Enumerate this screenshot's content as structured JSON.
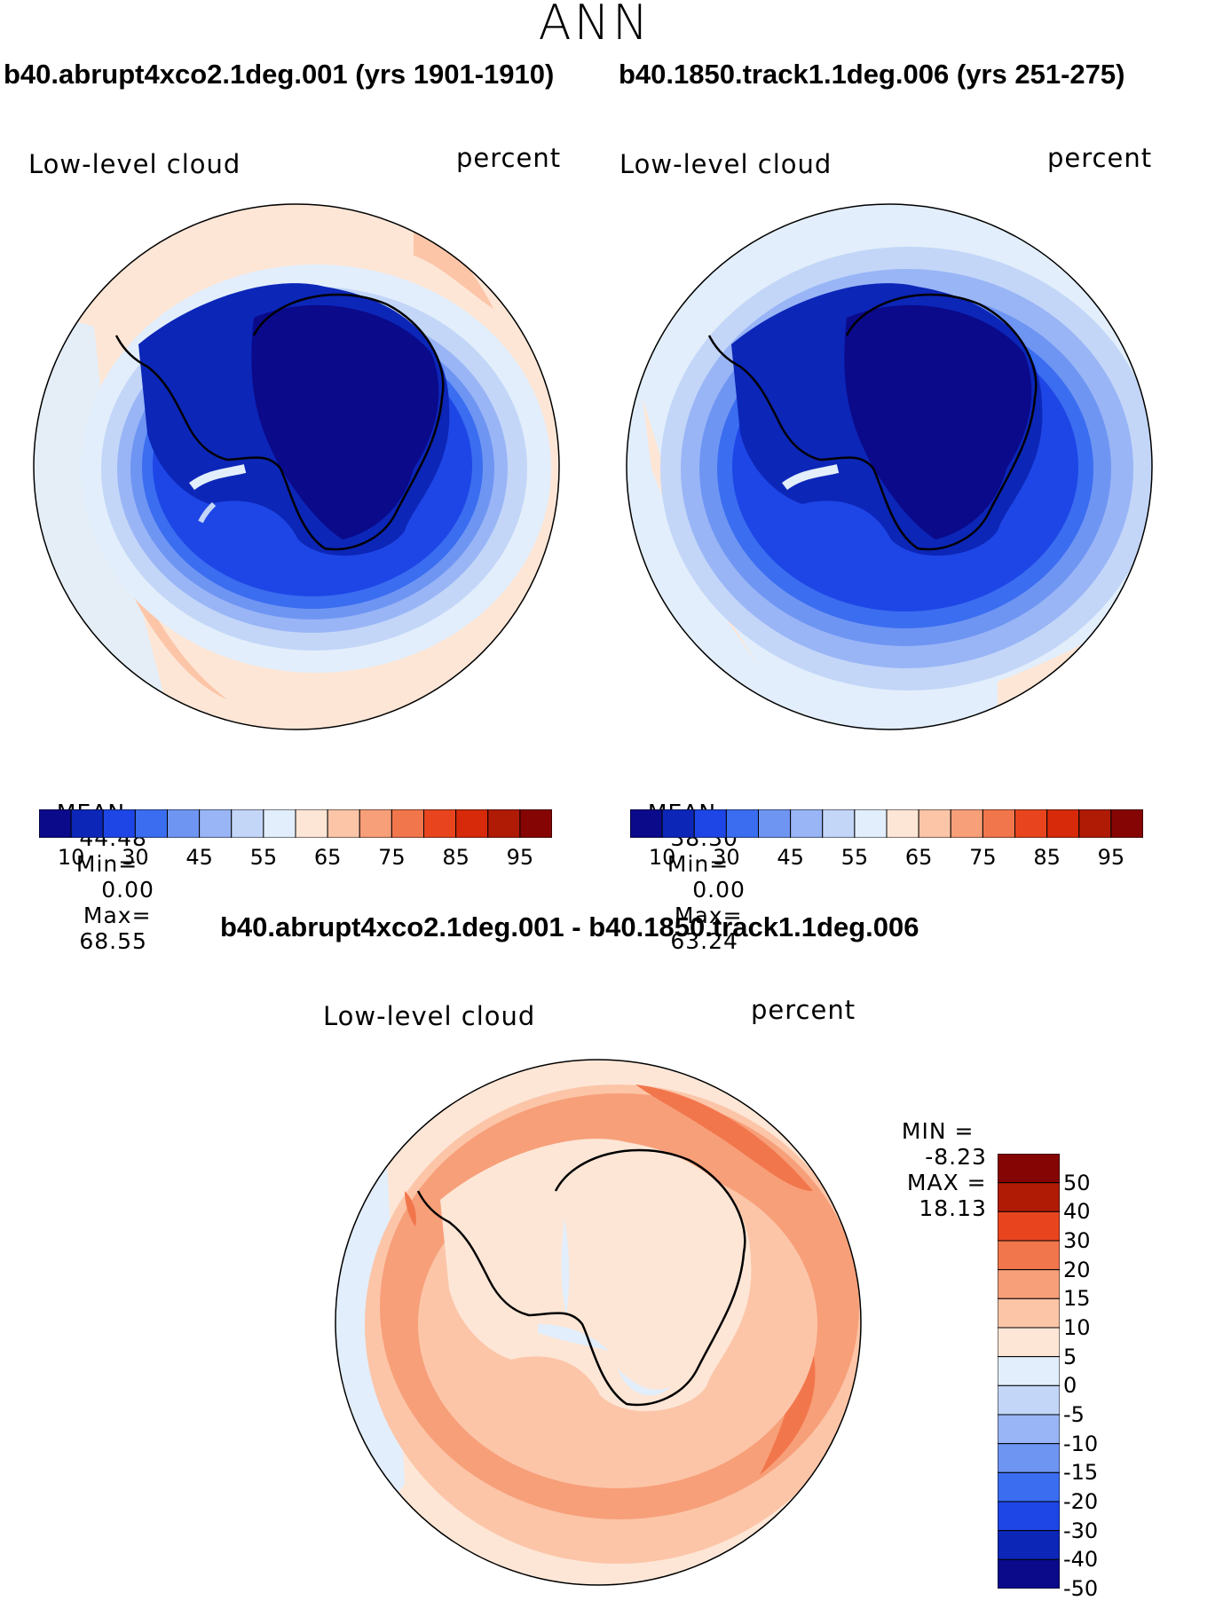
{
  "header": {
    "season": "ANN",
    "case1_title": "b40.abrupt4xco2.1deg.001 (yrs 1901-1910)",
    "case2_title": "b40.1850.track1.1deg.006 (yrs 251-275)",
    "diff_title": "b40.abrupt4xco2.1deg.001 - b40.1850.track1.1deg.006"
  },
  "panels": [
    {
      "variable": "Low-level cloud",
      "units": "percent",
      "stats": {
        "mean_label": "MEAN=",
        "mean": "44.48",
        "min_label": "Min=",
        "min": "0.00",
        "max_label": "Max=",
        "max": "68.55"
      }
    },
    {
      "variable": "Low-level cloud",
      "units": "percent",
      "stats": {
        "mean_label": "MEAN=",
        "mean": "38.30",
        "min_label": "Min=",
        "min": "0.00",
        "max_label": "Max=",
        "max": "63.24"
      }
    },
    {
      "variable": "Low-level cloud",
      "units": "percent",
      "stats": {
        "min_label": "MIN =",
        "min": "-8.23",
        "max_label": "MAX =",
        "max": "18.13"
      }
    }
  ],
  "colorbar_field": {
    "colors": [
      "#0a0a8a",
      "#0c26b8",
      "#1e46e6",
      "#3a6df0",
      "#6f95f3",
      "#99b5f6",
      "#c3d6f8",
      "#e2eefb",
      "#fde6d6",
      "#fcc5a8",
      "#f79f79",
      "#f2764c",
      "#e8451f",
      "#d62a0a",
      "#b01b06",
      "#850504"
    ],
    "labels": [
      "10",
      "30",
      "45",
      "55",
      "65",
      "75",
      "85",
      "95"
    ]
  },
  "colorbar_diff": {
    "colors": [
      "#850504",
      "#b01b06",
      "#e8451f",
      "#f2764c",
      "#f79f79",
      "#fcc5a8",
      "#fde6d6",
      "#e2eefb",
      "#c3d6f8",
      "#99b5f6",
      "#6f95f3",
      "#3a6df0",
      "#1e46e6",
      "#0c26b8",
      "#0a0a8a"
    ],
    "labels": [
      "50",
      "40",
      "30",
      "20",
      "15",
      "10",
      "5",
      "0",
      "-5",
      "-10",
      "-15",
      "-20",
      "-30",
      "-40",
      "-50"
    ]
  },
  "map_colors": {
    "peach_light": "#fde6d6",
    "peach": "#fcc5a8",
    "orange_light": "#f79f79",
    "orange": "#f2764c",
    "blue_pale": "#e2eefb",
    "blue_light": "#c3d6f8",
    "blue_mid": "#99b5f6",
    "blue_med": "#6f95f3",
    "blue": "#3a6df0",
    "blue_strong": "#1e46e6",
    "blue_deep": "#0c26b8",
    "blue_dark": "#0a0a8a"
  }
}
